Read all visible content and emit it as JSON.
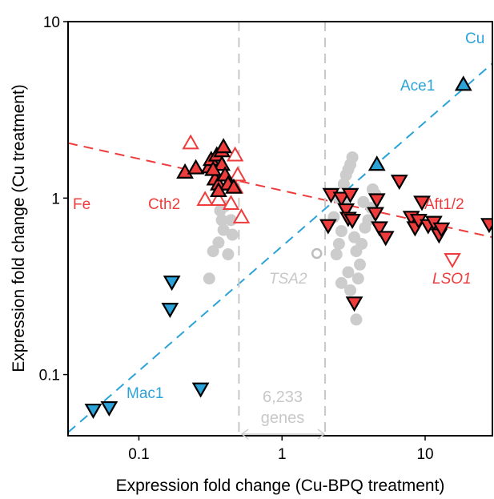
{
  "chart_data": {
    "type": "scatter",
    "xlabel": "Expression fold change (Cu-BPQ treatment)",
    "ylabel": "Expression fold change (Cu treatment)",
    "x_scale": "log",
    "y_scale": "log",
    "xlim": [
      0.032,
      29.5
    ],
    "ylim": [
      0.045,
      10
    ],
    "x_ticks": [
      0.1,
      1,
      10
    ],
    "x_tick_labels": [
      "0.1",
      "1",
      "10"
    ],
    "y_ticks": [
      0.1,
      1,
      10
    ],
    "y_tick_labels": [
      "0.1",
      "1",
      "10"
    ],
    "grid": false,
    "colors": {
      "cu_blue": "#2ba3d8",
      "fe_red": "#ee3c3c",
      "background_gray": "#cccccc",
      "edge_black": "#000000"
    },
    "reference_lines": [
      {
        "name": "Cu",
        "color": "#2ba3d8",
        "style": "dashed",
        "points": [
          [
            0.032,
            0.047
          ],
          [
            29.5,
            5.8
          ]
        ]
      },
      {
        "name": "Fe",
        "color": "#ee3c3c",
        "style": "dashed",
        "points": [
          [
            0.032,
            2.05
          ],
          [
            29.5,
            0.6
          ]
        ]
      }
    ],
    "vertical_lines": [
      0.5,
      2.0
    ],
    "line_labels": {
      "cu": "Cu",
      "fe": "Fe"
    },
    "gene_labels": {
      "ace1": "Ace1",
      "mac1": "Mac1",
      "cth2": "Cth2",
      "aft": "Aft1/2",
      "lso1": "LSO1",
      "tsa2": "TSA2"
    },
    "background_annotation": {
      "count": "6,233",
      "unit": "genes"
    },
    "series": [
      {
        "style": "blue_up_triangle",
        "points": [
          [
            18.5,
            4.4
          ],
          [
            4.6,
            1.55
          ]
        ]
      },
      {
        "style": "blue_down_triangle",
        "points": [
          [
            0.048,
            0.063
          ],
          [
            0.062,
            0.065
          ],
          [
            0.17,
            0.335
          ],
          [
            0.165,
            0.235
          ],
          [
            0.27,
            0.083
          ]
        ]
      },
      {
        "style": "red_up_filled",
        "points": [
          [
            0.21,
            1.4
          ],
          [
            0.25,
            1.48
          ],
          [
            0.31,
            1.5
          ],
          [
            0.32,
            1.65
          ],
          [
            0.34,
            1.28
          ],
          [
            0.35,
            1.75
          ],
          [
            0.36,
            1.2
          ],
          [
            0.38,
            1.85
          ],
          [
            0.38,
            1.55
          ],
          [
            0.39,
            1.95
          ],
          [
            0.4,
            1.35
          ],
          [
            0.42,
            1.2
          ],
          [
            0.46,
            1.15
          ],
          [
            0.36,
            1.1
          ],
          [
            0.33,
            1.45
          ]
        ]
      },
      {
        "style": "red_up_open",
        "points": [
          [
            0.23,
            2.05
          ],
          [
            0.29,
            0.98
          ],
          [
            0.36,
            0.98
          ],
          [
            0.44,
            0.93
          ],
          [
            0.47,
            1.15
          ],
          [
            0.47,
            1.75
          ],
          [
            0.49,
            1.35
          ],
          [
            0.52,
            0.78
          ]
        ]
      },
      {
        "style": "red_down_filled",
        "points": [
          [
            2.1,
            0.7
          ],
          [
            2.2,
            1.05
          ],
          [
            2.6,
            1.0
          ],
          [
            2.8,
            0.86
          ],
          [
            2.9,
            0.77
          ],
          [
            3.0,
            1.05
          ],
          [
            3.1,
            0.75
          ],
          [
            3.2,
            0.255
          ],
          [
            4.5,
            0.82
          ],
          [
            4.6,
            0.98
          ],
          [
            4.8,
            0.68
          ],
          [
            5.3,
            0.6
          ],
          [
            6.6,
            1.25
          ],
          [
            8.0,
            0.78
          ],
          [
            8.5,
            0.68
          ],
          [
            9.0,
            0.75
          ],
          [
            9.5,
            0.95
          ],
          [
            10.5,
            0.7
          ],
          [
            11.5,
            0.73
          ],
          [
            12.5,
            0.62
          ],
          [
            13.0,
            0.67
          ],
          [
            28.0,
            0.71
          ]
        ]
      },
      {
        "style": "red_down_open",
        "points": [
          [
            15.5,
            0.45
          ]
        ]
      },
      {
        "style": "gray_circle",
        "points": [
          [
            0.31,
            0.35
          ],
          [
            0.33,
            0.5
          ],
          [
            0.36,
            0.56
          ],
          [
            0.39,
            0.66
          ],
          [
            0.38,
            0.75
          ],
          [
            0.37,
            0.85
          ],
          [
            0.4,
            0.9
          ],
          [
            0.42,
            0.48
          ],
          [
            0.45,
            0.62
          ],
          [
            0.44,
            0.75
          ],
          [
            2.3,
            0.78
          ],
          [
            2.4,
            0.48
          ],
          [
            2.5,
            0.55
          ],
          [
            2.6,
            0.65
          ],
          [
            2.7,
            0.95
          ],
          [
            2.8,
            1.35
          ],
          [
            2.9,
            1.45
          ],
          [
            3.0,
            1.55
          ],
          [
            3.1,
            1.7
          ],
          [
            3.2,
            0.6
          ],
          [
            3.3,
            0.5
          ],
          [
            3.5,
            0.42
          ],
          [
            3.6,
            0.55
          ],
          [
            3.8,
            0.68
          ],
          [
            4.0,
            0.75
          ],
          [
            4.2,
            0.88
          ],
          [
            4.3,
            1.12
          ],
          [
            4.5,
            1.05
          ],
          [
            3.4,
            0.35
          ],
          [
            2.6,
            0.33
          ],
          [
            3.0,
            0.3
          ],
          [
            3.3,
            0.205
          ],
          [
            2.9,
            0.38
          ],
          [
            2.7,
            1.2
          ],
          [
            2.5,
            1.0
          ],
          [
            3.7,
            0.95
          ]
        ]
      },
      {
        "style": "gray_open_circle",
        "points": [
          [
            1.75,
            0.485
          ]
        ]
      }
    ]
  }
}
